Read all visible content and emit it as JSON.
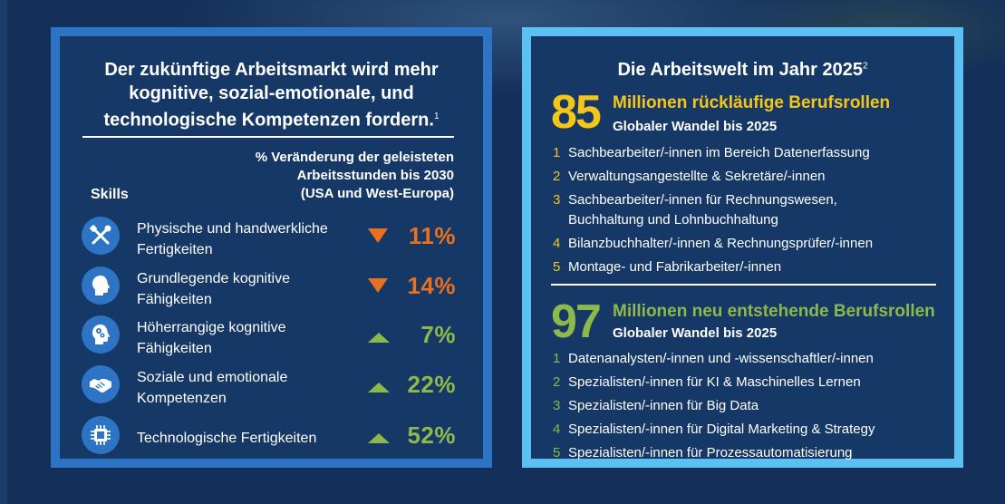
{
  "left_panel": {
    "title_lines": [
      "Der zukünftige Arbeitsmarkt wird mehr",
      "kognitive, sozial-emotionale, und",
      "technologische Kompetenzen fordern."
    ],
    "title_footnote": "1",
    "column_header_lines": [
      "% Veränderung der geleisteten",
      "Arbeitsstunden bis 2030",
      "(USA und West-Europa)"
    ],
    "skills_header": "Skills",
    "skills": [
      {
        "icon": "tools-icon",
        "label_lines": [
          "Physische und handwerkliche",
          "Fertigkeiten"
        ],
        "direction": "down",
        "value": "11%"
      },
      {
        "icon": "head-profile-icon",
        "label_lines": [
          "Grundlegende kognitive",
          "Fähigkeiten"
        ],
        "direction": "down",
        "value": "14%"
      },
      {
        "icon": "head-gears-icon",
        "label_lines": [
          "Höherrangige kognitive",
          "Fähigkeiten"
        ],
        "direction": "up",
        "value": "7%"
      },
      {
        "icon": "handshake-icon",
        "label_lines": [
          "Soziale und emotionale",
          "Kompetenzen"
        ],
        "direction": "up",
        "value": "22%"
      },
      {
        "icon": "chip-icon",
        "label_lines": [
          "Technologische Fertigkeiten"
        ],
        "direction": "up",
        "value": "52%"
      }
    ],
    "colors": {
      "border": "#2e74c4",
      "decrease": "#e8701e",
      "increase": "#8db84a"
    }
  },
  "right_panel": {
    "title": "Die Arbeitswelt im Jahr 2025",
    "title_footnote": "2",
    "declining": {
      "number": "85",
      "title": "Millionen rückläufige Berufsrollen",
      "subtitle": "Globaler Wandel bis 2025",
      "items": [
        {
          "n": "1",
          "lines": [
            "Sachbearbeiter/-innen im Bereich Datenerfassung"
          ]
        },
        {
          "n": "2",
          "lines": [
            "Verwaltungsangestellte & Sekretäre/-innen"
          ]
        },
        {
          "n": "3",
          "lines": [
            "Sachbearbeiter/-innen für Rechnungswesen,",
            "Buchhaltung und Lohnbuchhaltung"
          ]
        },
        {
          "n": "4",
          "lines": [
            "Bilanzbuchhalter/-innen & Rechnungsprüfer/-innen"
          ]
        },
        {
          "n": "5",
          "lines": [
            "Montage- und Fabrikarbeiter/-innen"
          ]
        }
      ]
    },
    "emerging": {
      "number": "97",
      "title": "Millionen neu entstehende Berufsrollen",
      "subtitle": "Globaler Wandel bis 2025",
      "items": [
        {
          "n": "1",
          "lines": [
            "Datenanalysten/-innen und -wissenschaftler/-innen"
          ]
        },
        {
          "n": "2",
          "lines": [
            "Spezialisten/-innen für KI & Maschinelles Lernen"
          ]
        },
        {
          "n": "3",
          "lines": [
            "Spezialisten/-innen für Big Data"
          ]
        },
        {
          "n": "4",
          "lines": [
            "Spezialisten/-innen für Digital Marketing & Strategy"
          ]
        },
        {
          "n": "5",
          "lines": [
            "Spezialisten/-innen für Prozessautomatisierung"
          ]
        }
      ]
    },
    "colors": {
      "border": "#5cc1f2",
      "declining": "#f5c518",
      "emerging": "#8db84a"
    }
  }
}
